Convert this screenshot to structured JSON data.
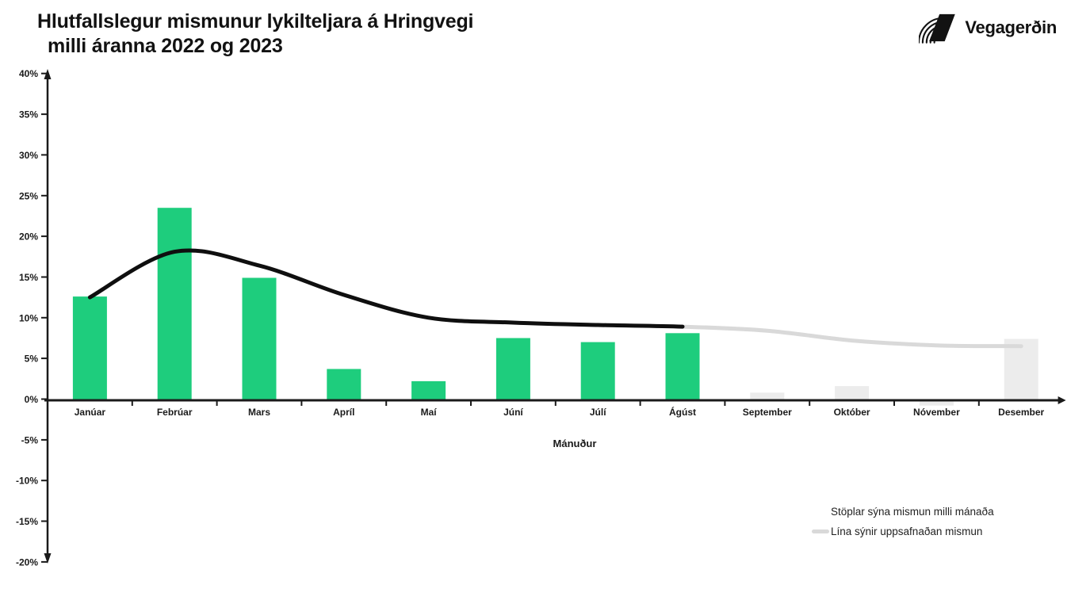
{
  "header": {
    "title_line1": "Hlutfallslegur mismunur lykilteljara á Hringvegi",
    "title_line2": "milli áranna 2022 og 2023",
    "logo_text": "Vegagerðin"
  },
  "chart_data": {
    "type": "bar",
    "title": "Hlutfallslegur mismunur lykilteljara á Hringvegi milli áranna 2022 og 2023",
    "categories": [
      "Janúar",
      "Febrúar",
      "Mars",
      "Apríl",
      "Maí",
      "Júní",
      "Júlí",
      "Ágúst",
      "September",
      "Október",
      "Nóvember",
      "Desember"
    ],
    "xlabel": "Mánuður",
    "ylabel": "",
    "ylim": [
      -20,
      40
    ],
    "y_tick_labels": [
      "40%",
      "35%",
      "30%",
      "25%",
      "20%",
      "15%",
      "10%",
      "5%",
      "0%",
      "-5%",
      "-10%",
      "-15%",
      "-20%"
    ],
    "grid": "off",
    "legend_position": "bottom-right",
    "actual_month_count": 8,
    "series": [
      {
        "name": "Stöplar sýna mismun milli mánaða",
        "type": "bar",
        "values": [
          12.6,
          23.5,
          14.9,
          3.7,
          2.2,
          7.5,
          7.0,
          8.1,
          0.8,
          1.6,
          -0.8,
          7.4
        ]
      },
      {
        "name": "Lína sýnir uppsafnaðan mismun",
        "type": "line",
        "values": [
          12.5,
          18.1,
          16.4,
          12.8,
          10.0,
          9.4,
          9.1,
          8.9,
          8.4,
          7.2,
          6.6,
          6.5
        ]
      }
    ],
    "colors": {
      "bar_actual": "#1ecd7d",
      "bar_projected": "#ececec",
      "line_actual": "#0f0f0f",
      "line_projected": "#d9d9d9",
      "axis": "#1a1a1a"
    }
  },
  "legend": {
    "items": [
      {
        "label": "Stöplar sýna mismun milli mánaða",
        "swatch": "none"
      },
      {
        "label": "Lína sýnir uppsafnaðan mismun",
        "swatch": "gray-line"
      }
    ]
  }
}
